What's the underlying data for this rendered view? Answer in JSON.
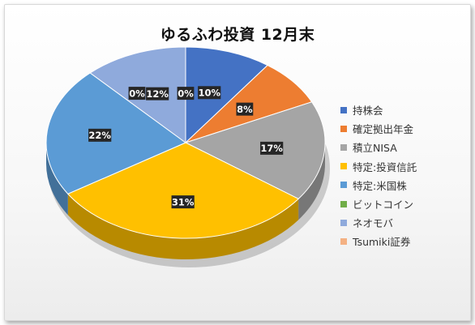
{
  "chart_data": {
    "type": "pie",
    "title": "ゆるふわ投資 12月末",
    "slices": [
      {
        "name": "持株会",
        "value": 10,
        "label": "10%",
        "color": "#4472C4"
      },
      {
        "name": "確定拠出年金",
        "value": 8,
        "label": "8%",
        "color": "#ED7D31"
      },
      {
        "name": "積立NISA",
        "value": 17,
        "label": "17%",
        "color": "#A5A5A5"
      },
      {
        "name": "特定:投資信託",
        "value": 31,
        "label": "31%",
        "color": "#FFC000"
      },
      {
        "name": "特定:米国株",
        "value": 22,
        "label": "22%",
        "color": "#5B9BD5"
      },
      {
        "name": "ビットコイン",
        "value": 0,
        "label": "0%",
        "color": "#70AD47"
      },
      {
        "name": "ネオモバ",
        "value": 12,
        "label": "12%",
        "color": "#8FAADC"
      },
      {
        "name": "Tsumiki証券",
        "value": 0,
        "label": "0%",
        "color": "#F4B183"
      }
    ],
    "legend_position": "right",
    "style": "3d"
  }
}
